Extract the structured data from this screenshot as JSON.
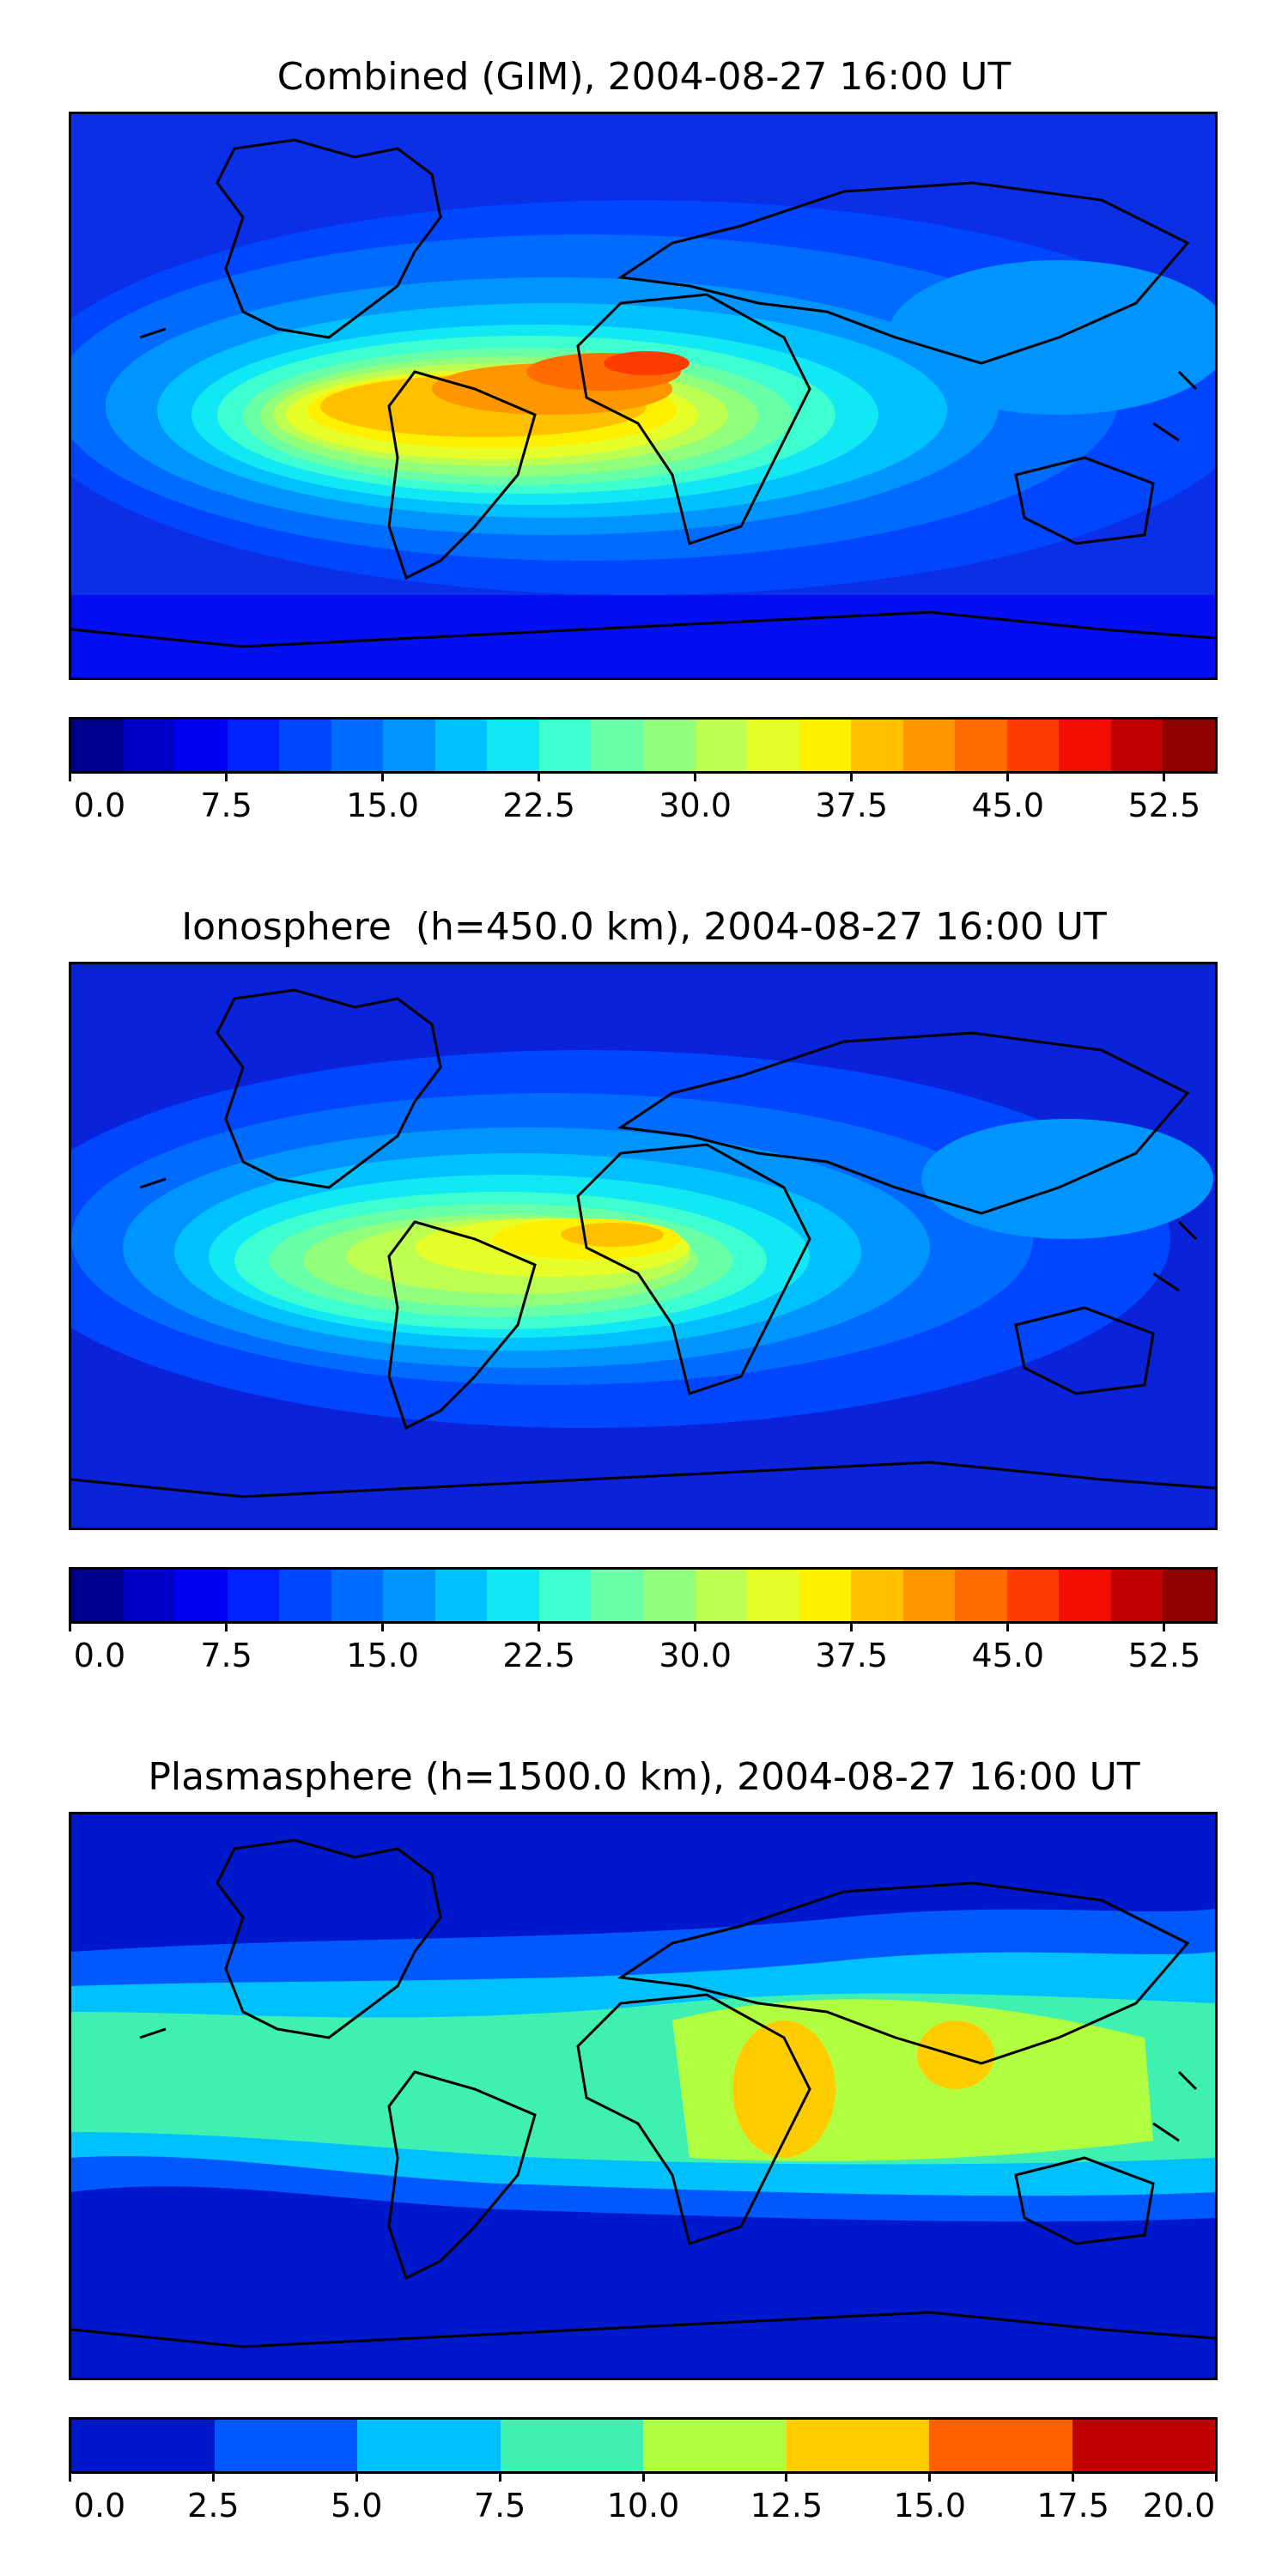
{
  "panels": [
    {
      "title": "Combined (GIM), 2004-08-27 16:00 UT",
      "colorbar": {
        "colors": [
          "#00008f",
          "#0000c8",
          "#0000f5",
          "#0022ff",
          "#0046ff",
          "#006cff",
          "#0094ff",
          "#00c0ff",
          "#12e8f4",
          "#3effd0",
          "#68ffa6",
          "#92ff7c",
          "#bcff52",
          "#e6ff28",
          "#fff000",
          "#ffc000",
          "#ff9600",
          "#ff6c00",
          "#ff3c00",
          "#f20e00",
          "#c00000",
          "#8f0000"
        ],
        "tick_labels": [
          "0.0",
          "7.5",
          "15.0",
          "22.5",
          "30.0",
          "37.5",
          "45.0",
          "52.5"
        ],
        "tick_values": [
          0,
          7.5,
          15,
          22.5,
          30,
          37.5,
          45,
          52.5
        ],
        "vmin": 0,
        "vmax": 55
      }
    },
    {
      "title": "Ionosphere  (h=450.0 km), 2004-08-27 16:00 UT",
      "colorbar": {
        "colors": [
          "#00008f",
          "#0000c8",
          "#0000f5",
          "#0022ff",
          "#0046ff",
          "#006cff",
          "#0094ff",
          "#00c0ff",
          "#12e8f4",
          "#3effd0",
          "#68ffa6",
          "#92ff7c",
          "#bcff52",
          "#e6ff28",
          "#fff000",
          "#ffc000",
          "#ff9600",
          "#ff6c00",
          "#ff3c00",
          "#f20e00",
          "#c00000",
          "#8f0000"
        ],
        "tick_labels": [
          "0.0",
          "7.5",
          "15.0",
          "22.5",
          "30.0",
          "37.5",
          "45.0",
          "52.5"
        ],
        "tick_values": [
          0,
          7.5,
          15,
          22.5,
          30,
          37.5,
          45,
          52.5
        ],
        "vmin": 0,
        "vmax": 55
      }
    },
    {
      "title": "Plasmasphere (h=1500.0 km), 2004-08-27 16:00 UT",
      "colorbar": {
        "colors": [
          "#0018cc",
          "#0058ff",
          "#00c0ff",
          "#40f0b0",
          "#b0ff40",
          "#ffcc00",
          "#ff6000",
          "#c00000"
        ],
        "tick_labels": [
          "0.0",
          "2.5",
          "5.0",
          "7.5",
          "10.0",
          "12.5",
          "15.0",
          "17.5",
          "20.0"
        ],
        "tick_values": [
          0,
          2.5,
          5,
          7.5,
          10,
          12.5,
          15,
          17.5,
          20
        ],
        "vmin": 0,
        "vmax": 20
      }
    }
  ]
}
